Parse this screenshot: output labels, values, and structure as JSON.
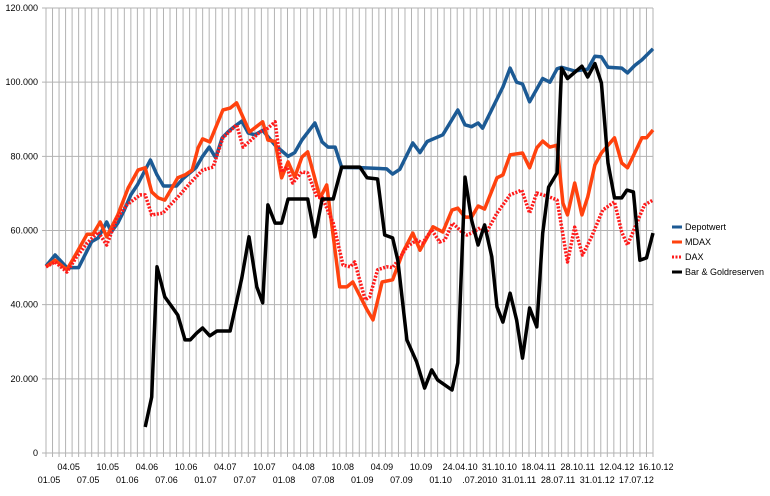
{
  "chart_data": {
    "type": "line",
    "title": "",
    "xlabel": "",
    "ylabel": "",
    "ylim": [
      0,
      120000
    ],
    "y_ticks": [
      {
        "value": 0,
        "label": "0"
      },
      {
        "value": 20000,
        "label": "20.000"
      },
      {
        "value": 40000,
        "label": "40.000"
      },
      {
        "value": 60000,
        "label": "60.000"
      },
      {
        "value": 80000,
        "label": "80.000"
      },
      {
        "value": 100000,
        "label": "100.000"
      },
      {
        "value": 120000,
        "label": "120.000"
      }
    ],
    "grid": true,
    "legend_position": "right",
    "x_period_count": 94,
    "x_tick_labels": [
      "01.05",
      "04.05",
      "07.05",
      "10.05",
      "01.06",
      "04.06",
      "07.06",
      "10.06",
      "01.07",
      "04.07",
      "07.07",
      "10.07",
      "01.08",
      "04.08",
      "07.08",
      "10.08",
      "01.09",
      "04.09",
      "07.09",
      "10.09",
      "01.10",
      "24.04.10",
      ".07.2010",
      "31.10.10",
      "31.01.11",
      "18.04.11",
      "28.07.11",
      "28.10.11",
      "31.01.12",
      "12.04.12",
      "17.07.12",
      "16.10.12"
    ],
    "x_tick_every": 3,
    "series": [
      {
        "name": "Depotwert",
        "color": "#1c5a94",
        "style": "solid",
        "points": [
          [
            0,
            50400
          ],
          [
            1.4,
            53400
          ],
          [
            3.2,
            50000
          ],
          [
            5,
            50000
          ],
          [
            7,
            57000
          ],
          [
            8,
            58000
          ],
          [
            9.3,
            62300
          ],
          [
            10,
            59600
          ],
          [
            11,
            62000
          ],
          [
            12,
            65500
          ],
          [
            13,
            69600
          ],
          [
            14,
            72300
          ],
          [
            16,
            79000
          ],
          [
            17,
            75000
          ],
          [
            18,
            72000
          ],
          [
            20,
            72000
          ],
          [
            21,
            74000
          ],
          [
            23,
            77000
          ],
          [
            24,
            80000
          ],
          [
            25,
            82500
          ],
          [
            26,
            79600
          ],
          [
            27,
            85000
          ],
          [
            28,
            86800
          ],
          [
            29,
            88200
          ],
          [
            30,
            89500
          ],
          [
            31,
            86300
          ],
          [
            32,
            85800
          ],
          [
            33.2,
            87000
          ],
          [
            35.1,
            83000
          ],
          [
            37.1,
            80000
          ],
          [
            38.1,
            81000
          ],
          [
            39.2,
            84400
          ],
          [
            41.2,
            89000
          ],
          [
            42.3,
            83900
          ],
          [
            43.2,
            82500
          ],
          [
            44.3,
            82500
          ],
          [
            45.3,
            77000
          ],
          [
            48.6,
            76900
          ],
          [
            52.2,
            76600
          ],
          [
            53.1,
            75200
          ],
          [
            54.2,
            76500
          ],
          [
            56.2,
            83600
          ],
          [
            57.3,
            81000
          ],
          [
            58.4,
            84000
          ],
          [
            60.8,
            85800
          ],
          [
            63.1,
            92500
          ],
          [
            64.2,
            88500
          ],
          [
            65.2,
            88000
          ],
          [
            66.2,
            89000
          ],
          [
            66.9,
            87600
          ],
          [
            70,
            98700
          ],
          [
            71.1,
            103800
          ],
          [
            72.1,
            100000
          ],
          [
            73,
            99500
          ],
          [
            74.1,
            94700
          ],
          [
            76.1,
            101000
          ],
          [
            77.2,
            100000
          ],
          [
            78.3,
            103600
          ],
          [
            79,
            104000
          ],
          [
            81,
            103000
          ],
          [
            83,
            103500
          ],
          [
            84.1,
            107000
          ],
          [
            85.1,
            106800
          ],
          [
            86.1,
            104000
          ],
          [
            88.2,
            103800
          ],
          [
            89.1,
            102500
          ],
          [
            90.2,
            104500
          ],
          [
            91.3,
            106000
          ],
          [
            93,
            109000
          ]
        ]
      },
      {
        "name": "MDAX",
        "color": "#ff420e",
        "style": "solid",
        "points": [
          [
            0,
            50200
          ],
          [
            1.4,
            52000
          ],
          [
            3.2,
            49400
          ],
          [
            4.7,
            54000
          ],
          [
            6.3,
            59000
          ],
          [
            7.2,
            59000
          ],
          [
            8.3,
            62300
          ],
          [
            9.3,
            58300
          ],
          [
            11,
            64200
          ],
          [
            12.6,
            71500
          ],
          [
            14.1,
            76300
          ],
          [
            15.2,
            76900
          ],
          [
            16.2,
            70400
          ],
          [
            17.2,
            68800
          ],
          [
            18.2,
            68200
          ],
          [
            20.2,
            74200
          ],
          [
            21.3,
            75000
          ],
          [
            22.4,
            76300
          ],
          [
            23.3,
            82300
          ],
          [
            24,
            84700
          ],
          [
            25.1,
            83900
          ],
          [
            27.1,
            92500
          ],
          [
            28.2,
            93000
          ],
          [
            29.2,
            94400
          ],
          [
            31.2,
            86600
          ],
          [
            33.2,
            89300
          ],
          [
            34,
            84400
          ],
          [
            35.1,
            84000
          ],
          [
            36.1,
            74200
          ],
          [
            37.1,
            78500
          ],
          [
            38.1,
            74400
          ],
          [
            39.2,
            79800
          ],
          [
            40.1,
            81200
          ],
          [
            42,
            68800
          ],
          [
            43,
            72300
          ],
          [
            45,
            44800
          ],
          [
            46.1,
            44800
          ],
          [
            47,
            46100
          ],
          [
            49.2,
            38600
          ],
          [
            50.1,
            35900
          ],
          [
            51.5,
            46100
          ],
          [
            53.1,
            46700
          ],
          [
            54.7,
            54200
          ],
          [
            56.2,
            59300
          ],
          [
            57.3,
            54700
          ],
          [
            59.3,
            61000
          ],
          [
            60.8,
            59600
          ],
          [
            62.2,
            65500
          ],
          [
            63.1,
            66000
          ],
          [
            64.2,
            63600
          ],
          [
            65.2,
            63600
          ],
          [
            66.2,
            66600
          ],
          [
            67.2,
            65800
          ],
          [
            69.1,
            74200
          ],
          [
            70,
            75000
          ],
          [
            71.1,
            80400
          ],
          [
            73,
            80900
          ],
          [
            74.1,
            76900
          ],
          [
            75.2,
            82300
          ],
          [
            76.1,
            84100
          ],
          [
            77.2,
            82500
          ],
          [
            78.3,
            83000
          ],
          [
            79.2,
            67400
          ],
          [
            79.9,
            64200
          ],
          [
            81,
            72800
          ],
          [
            82.1,
            64200
          ],
          [
            83,
            69000
          ],
          [
            84.1,
            77700
          ],
          [
            85.1,
            80900
          ],
          [
            86.1,
            83000
          ],
          [
            87.1,
            85000
          ],
          [
            88.2,
            78200
          ],
          [
            89.1,
            76900
          ],
          [
            90.2,
            80900
          ],
          [
            91.3,
            85000
          ],
          [
            92,
            85000
          ],
          [
            93,
            87100
          ]
        ]
      },
      {
        "name": "DAX",
        "color": "#ff1a1a",
        "style": "dotted",
        "points": [
          [
            0,
            50200
          ],
          [
            1.4,
            51500
          ],
          [
            3.2,
            48800
          ],
          [
            4.7,
            52900
          ],
          [
            6.3,
            56600
          ],
          [
            8,
            59600
          ],
          [
            9.3,
            56100
          ],
          [
            10.9,
            63400
          ],
          [
            12.4,
            66900
          ],
          [
            14.4,
            69600
          ],
          [
            15.2,
            69600
          ],
          [
            16.2,
            64200
          ],
          [
            17.9,
            64700
          ],
          [
            20.5,
            69600
          ],
          [
            22.1,
            72800
          ],
          [
            24,
            76300
          ],
          [
            25.6,
            77100
          ],
          [
            27.1,
            85000
          ],
          [
            29.2,
            88500
          ],
          [
            30.2,
            82500
          ],
          [
            32.8,
            86600
          ],
          [
            33.2,
            87000
          ],
          [
            34,
            87600
          ],
          [
            35.1,
            89300
          ],
          [
            36.1,
            75800
          ],
          [
            36.9,
            77100
          ],
          [
            37.8,
            72800
          ],
          [
            39.2,
            75800
          ],
          [
            40.1,
            75500
          ],
          [
            41.5,
            69000
          ],
          [
            42.3,
            69000
          ],
          [
            44,
            62000
          ],
          [
            45.5,
            50700
          ],
          [
            46.6,
            50200
          ],
          [
            47.3,
            51500
          ],
          [
            48.9,
            41300
          ],
          [
            49.6,
            42100
          ],
          [
            50.8,
            49400
          ],
          [
            52.2,
            50200
          ],
          [
            53.1,
            50000
          ],
          [
            54.2,
            52600
          ],
          [
            55.3,
            55600
          ],
          [
            56.8,
            57400
          ],
          [
            57.7,
            56600
          ],
          [
            59.1,
            60200
          ],
          [
            60.3,
            56900
          ],
          [
            61.1,
            57400
          ],
          [
            62.3,
            62000
          ],
          [
            63.9,
            59300
          ],
          [
            64.5,
            58800
          ],
          [
            65.4,
            59500
          ],
          [
            66.5,
            60700
          ],
          [
            67.5,
            59600
          ],
          [
            69.1,
            64700
          ],
          [
            71.1,
            69600
          ],
          [
            72.9,
            70900
          ],
          [
            74.1,
            64700
          ],
          [
            75.2,
            70100
          ],
          [
            77.2,
            69000
          ],
          [
            78.3,
            68200
          ],
          [
            79.9,
            51500
          ],
          [
            81,
            60900
          ],
          [
            82.2,
            53400
          ],
          [
            83.6,
            58300
          ],
          [
            85.3,
            65500
          ],
          [
            87.1,
            67700
          ],
          [
            88.2,
            59600
          ],
          [
            89.1,
            56100
          ],
          [
            90.2,
            60700
          ],
          [
            91.7,
            66900
          ],
          [
            93,
            68200
          ]
        ]
      },
      {
        "name": "Bar & Goldreserven",
        "color": "#000000",
        "style": "solid",
        "points": [
          [
            15.2,
            7000
          ],
          [
            16.2,
            15100
          ],
          [
            17,
            50200
          ],
          [
            18.2,
            42100
          ],
          [
            19.3,
            39400
          ],
          [
            20.2,
            37200
          ],
          [
            21.3,
            30500
          ],
          [
            22.1,
            30500
          ],
          [
            23.1,
            32400
          ],
          [
            24,
            33700
          ],
          [
            25.1,
            31600
          ],
          [
            26.2,
            32900
          ],
          [
            28.2,
            32900
          ],
          [
            30,
            47200
          ],
          [
            31.1,
            58300
          ],
          [
            32.3,
            44800
          ],
          [
            33.2,
            40500
          ],
          [
            34,
            66900
          ],
          [
            35.1,
            62000
          ],
          [
            36.1,
            62000
          ],
          [
            37.1,
            68500
          ],
          [
            40.1,
            68500
          ],
          [
            41.2,
            58300
          ],
          [
            42.3,
            68500
          ],
          [
            44,
            68500
          ],
          [
            45.3,
            77100
          ],
          [
            48.1,
            77100
          ],
          [
            49.2,
            74200
          ],
          [
            50.8,
            73900
          ],
          [
            51.9,
            58800
          ],
          [
            53.1,
            58000
          ],
          [
            53.9,
            52000
          ],
          [
            55.3,
            30500
          ],
          [
            56.8,
            24500
          ],
          [
            58,
            17500
          ],
          [
            59.1,
            22400
          ],
          [
            60,
            19700
          ],
          [
            62.2,
            17000
          ],
          [
            63.1,
            24300
          ],
          [
            64.2,
            74400
          ],
          [
            65.2,
            62800
          ],
          [
            66.2,
            56100
          ],
          [
            67.2,
            61500
          ],
          [
            68.3,
            52900
          ],
          [
            69.1,
            39400
          ],
          [
            70,
            35300
          ],
          [
            71.1,
            43100
          ],
          [
            72.1,
            35900
          ],
          [
            73,
            25600
          ],
          [
            74.1,
            39100
          ],
          [
            75.2,
            34000
          ],
          [
            76.1,
            59300
          ],
          [
            77,
            71700
          ],
          [
            78.3,
            75500
          ],
          [
            79,
            103800
          ],
          [
            79.9,
            101000
          ],
          [
            82.1,
            104300
          ],
          [
            83,
            101400
          ],
          [
            84.1,
            105000
          ],
          [
            85.1,
            99800
          ],
          [
            86.1,
            78200
          ],
          [
            87.1,
            68800
          ],
          [
            88.2,
            68800
          ],
          [
            89,
            70900
          ],
          [
            90,
            70400
          ],
          [
            91,
            52000
          ],
          [
            92,
            52600
          ],
          [
            93,
            59300
          ]
        ]
      }
    ]
  }
}
